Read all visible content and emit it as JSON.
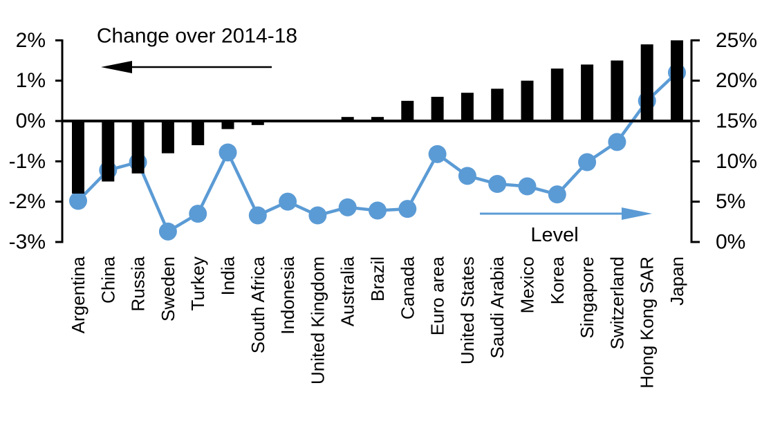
{
  "chart_data": {
    "type": "bar",
    "subtype": "dual-axis bar + line combo",
    "categories": [
      "Argentina",
      "China",
      "Russia",
      "Sweden",
      "Turkey",
      "India",
      "South Africa",
      "Indonesia",
      "United Kingdom",
      "Australia",
      "Brazil",
      "Canada",
      "Euro area",
      "United States",
      "Saudi Arabia",
      "Mexico",
      "Korea",
      "Singapore",
      "Switzerland",
      "Hong Kong SAR",
      "Japan"
    ],
    "series": [
      {
        "name": "Change over 2014-18",
        "type": "bar",
        "axis": "left",
        "color": "#000000",
        "values": [
          -1.8,
          -1.5,
          -1.3,
          -0.8,
          -0.6,
          -0.2,
          -0.1,
          0,
          0,
          0.1,
          0.1,
          0.5,
          0.6,
          0.7,
          0.8,
          1.0,
          1.3,
          1.4,
          1.5,
          1.9,
          2.0
        ]
      },
      {
        "name": "Level",
        "type": "line",
        "axis": "right",
        "color": "#5B9BD5",
        "values": [
          5.1,
          8.9,
          9.9,
          1.3,
          3.5,
          11.1,
          3.3,
          5.0,
          3.3,
          4.3,
          3.9,
          4.1,
          10.9,
          8.2,
          7.2,
          6.9,
          5.9,
          9.9,
          12.4,
          17.5,
          21.0
        ]
      }
    ],
    "left_axis": {
      "ticks": [
        "2%",
        "1%",
        "0%",
        "-1%",
        "-2%",
        "-3%"
      ],
      "range": [
        -3,
        2
      ],
      "unit": "%"
    },
    "right_axis": {
      "ticks": [
        "25%",
        "20%",
        "15%",
        "10%",
        "5%",
        "0%"
      ],
      "range": [
        0,
        25
      ],
      "unit": "%"
    },
    "annotations": {
      "bar_label": "Change over 2014-18",
      "line_label": "Level"
    },
    "grid": "off",
    "legend_position": "arrow annotations inside plot",
    "background": "#FFFFFF"
  }
}
